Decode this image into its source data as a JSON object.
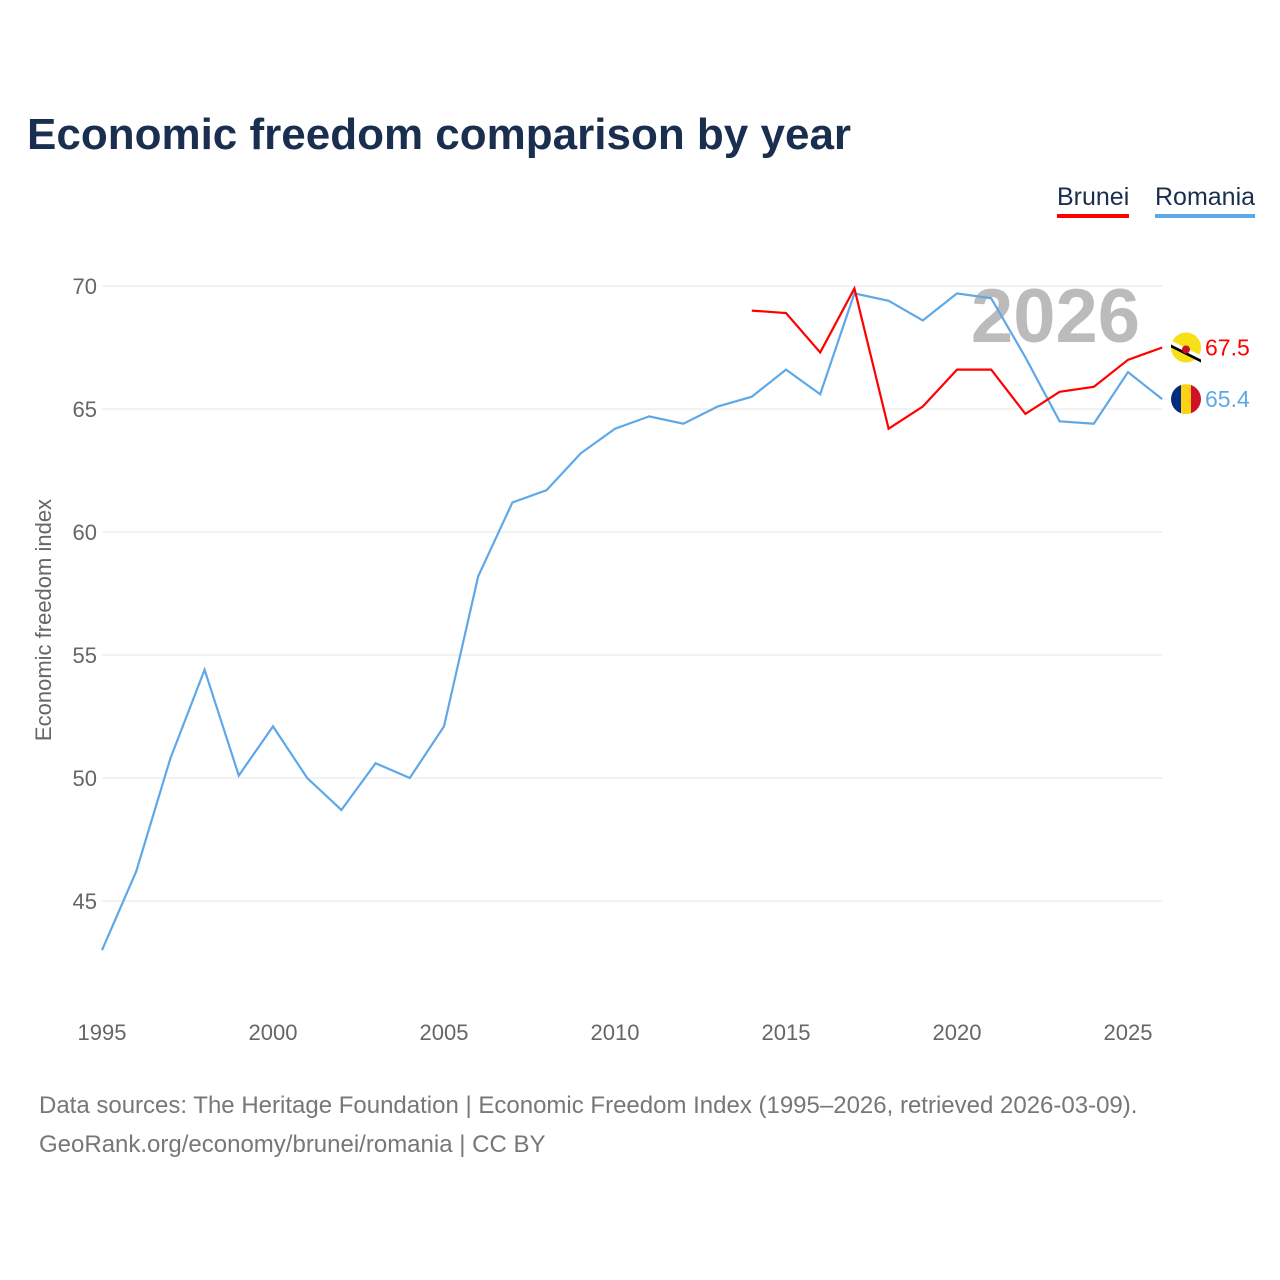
{
  "title": "Economic freedom comparison by year",
  "footer": {
    "line1": "Data sources: The Heritage Foundation | Economic Freedom Index (1995–2026, retrieved 2026-03-09).",
    "line2": "GeoRank.org/economy/brunei/romania | CC BY"
  },
  "chart_data": {
    "type": "line",
    "title": "Economic freedom comparison by year",
    "ylabel": "Economic freedom index",
    "xlabel": "",
    "year_watermark": "2026",
    "xlim": [
      1995,
      2026
    ],
    "ylim": [
      41,
      72
    ],
    "x_ticks": [
      1995,
      2000,
      2005,
      2010,
      2015,
      2020,
      2025
    ],
    "y_ticks": [
      45,
      50,
      55,
      60,
      65,
      70
    ],
    "grid": true,
    "legend_placement": "top-right",
    "series": [
      {
        "name": "Brunei",
        "color": "#ff0000",
        "end_label": "67.5",
        "flag": "brunei-flag",
        "x": [
          2014,
          2015,
          2016,
          2017,
          2018,
          2019,
          2020,
          2021,
          2022,
          2023,
          2024,
          2025,
          2026
        ],
        "values": [
          69.0,
          68.9,
          67.3,
          69.9,
          64.2,
          65.1,
          66.6,
          66.6,
          64.8,
          65.7,
          65.9,
          67.0,
          67.5
        ]
      },
      {
        "name": "Romania",
        "color": "#5fa8e8",
        "end_label": "65.4",
        "flag": "romania-flag",
        "x": [
          1995,
          1996,
          1997,
          1998,
          1999,
          2000,
          2001,
          2002,
          2003,
          2004,
          2005,
          2006,
          2007,
          2008,
          2009,
          2010,
          2011,
          2012,
          2013,
          2014,
          2015,
          2016,
          2017,
          2018,
          2019,
          2020,
          2021,
          2022,
          2023,
          2024,
          2025,
          2026
        ],
        "values": [
          43.0,
          46.2,
          50.8,
          54.4,
          50.1,
          52.1,
          50.0,
          48.7,
          50.6,
          50.0,
          52.1,
          58.2,
          61.2,
          61.7,
          63.2,
          64.2,
          64.7,
          64.4,
          65.1,
          65.5,
          66.6,
          65.6,
          69.7,
          69.4,
          68.6,
          69.7,
          69.5,
          67.1,
          64.5,
          64.4,
          66.5,
          65.4
        ]
      }
    ]
  }
}
